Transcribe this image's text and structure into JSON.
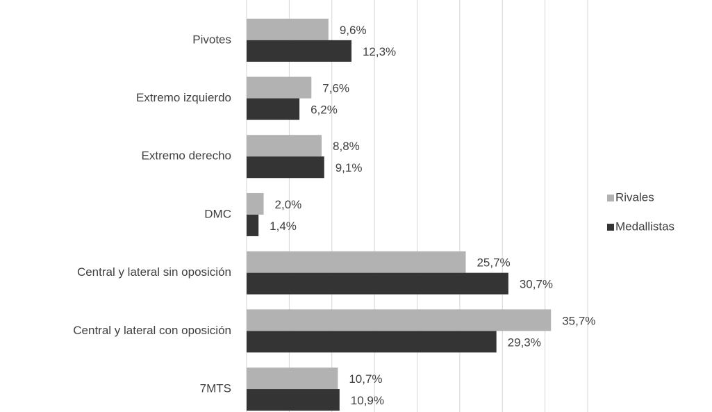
{
  "chart_data": {
    "type": "bar",
    "orientation": "horizontal",
    "categories": [
      "Pivotes",
      "Extremo izquierdo",
      "Extremo derecho",
      "DMC",
      "Central y lateral sin oposición",
      "Central y lateral con oposición",
      "7MTS"
    ],
    "series": [
      {
        "name": "Rivales",
        "color": "#b2b2b2",
        "values": [
          9.6,
          7.6,
          8.8,
          2.0,
          25.7,
          35.7,
          10.7
        ],
        "value_labels": [
          "9,6%",
          "7,6%",
          "8,8%",
          "2,0%",
          "25,7%",
          "35,7%",
          "10,7%"
        ]
      },
      {
        "name": "Medallistas",
        "color": "#343434",
        "values": [
          12.3,
          6.2,
          9.1,
          1.4,
          30.7,
          29.3,
          10.9
        ],
        "value_labels": [
          "12,3%",
          "6,2%",
          "9,1%",
          "1,4%",
          "30,7%",
          "29,3%",
          "10,9%"
        ]
      }
    ],
    "xlim": [
      0,
      40
    ],
    "xticks": [
      0,
      5,
      10,
      15,
      20,
      25,
      30,
      35,
      40
    ],
    "grid": true,
    "legend": "right"
  }
}
